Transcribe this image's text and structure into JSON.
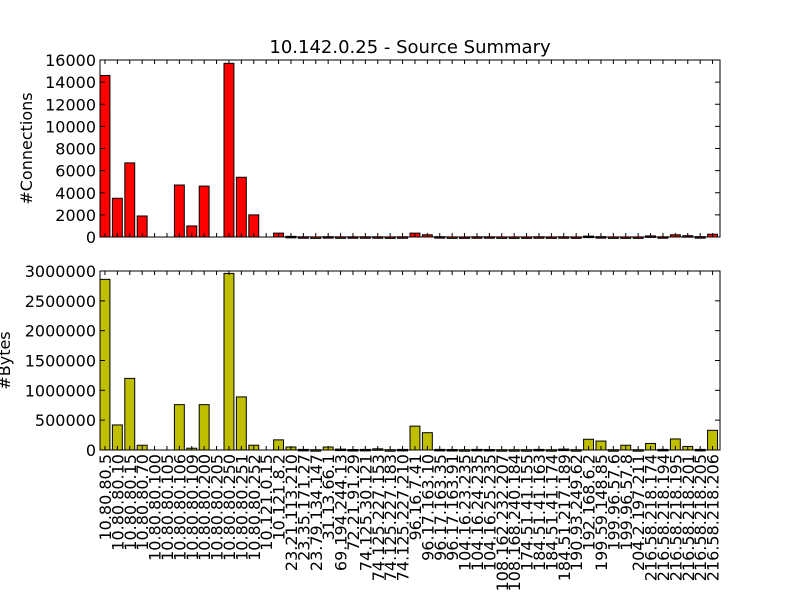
{
  "chart_data": {
    "type": "bar",
    "title": "10.142.0.25 - Source Summary",
    "xlabel": "",
    "categories": [
      "10.80.80.5",
      "10.80.80.10",
      "10.80.80.15",
      "10.80.80.70",
      "10.80.80.100",
      "10.80.80.105",
      "10.80.80.106",
      "10.80.80.109",
      "10.80.80.200",
      "10.80.80.205",
      "10.80.80.250",
      "10.80.80.251",
      "10.80.80.252",
      "10.121.0.15",
      "10.121.8.2",
      "23.21.113.210",
      "23.35.171.27",
      "23.79.134.147",
      "31.13.66.1",
      "69.194.244.13",
      "72.21.91.29",
      "74.125.30.121",
      "74.125.227.153",
      "74.125.227.183",
      "74.125.227.210",
      "96.16.7.41",
      "96.17.163.10",
      "96.17.163.35",
      "96.17.163.91",
      "104.16.23.235",
      "104.16.24.235",
      "104.16.25.235",
      "108.162.232.207",
      "108.168.240.184",
      "174.51.41.155",
      "184.51.41.163",
      "184.51.41.174",
      "184.51.217.189",
      "190.93.249.62",
      "192.168.6.2",
      "199.59.148.85",
      "199.96.57.6",
      "199.96.57.8",
      "204.2.197.211",
      "216.58.218.174",
      "216.58.218.194",
      "216.58.218.195",
      "216.58.218.201",
      "216.58.218.205",
      "216.58.218.206"
    ],
    "series": [
      {
        "name": "#Connections",
        "ylabel": "#Connections",
        "color": "#ff0000",
        "ylim": [
          0,
          16000
        ],
        "yticks": [
          0,
          2000,
          4000,
          6000,
          8000,
          10000,
          12000,
          14000,
          16000
        ],
        "show_xticklabels": false,
        "values": [
          14600,
          3500,
          6700,
          1900,
          0,
          0,
          4700,
          1000,
          4600,
          0,
          15700,
          5400,
          2000,
          0,
          350,
          60,
          20,
          10,
          30,
          15,
          20,
          20,
          20,
          10,
          20,
          350,
          200,
          30,
          10,
          10,
          20,
          20,
          10,
          10,
          10,
          20,
          10,
          20,
          10,
          80,
          30,
          10,
          10,
          10,
          100,
          20,
          200,
          120,
          30,
          250
        ]
      },
      {
        "name": "#Bytes",
        "ylabel": "#Bytes",
        "color": "#bfbf00",
        "ylim": [
          0,
          3000000
        ],
        "yticks": [
          0,
          500000,
          1000000,
          1500000,
          2000000,
          2500000,
          3000000
        ],
        "show_xticklabels": true,
        "values": [
          2860000,
          420000,
          1200000,
          80000,
          0,
          0,
          760000,
          30000,
          760000,
          0,
          2960000,
          890000,
          80000,
          0,
          170000,
          50000,
          10000,
          5000,
          50000,
          15000,
          8000,
          10000,
          20000,
          5000,
          10000,
          400000,
          290000,
          10000,
          8000,
          5000,
          10000,
          8000,
          5000,
          5000,
          5000,
          10000,
          5000,
          15000,
          5000,
          180000,
          150000,
          5000,
          80000,
          5000,
          110000,
          10000,
          185000,
          60000,
          10000,
          330000
        ]
      }
    ]
  }
}
